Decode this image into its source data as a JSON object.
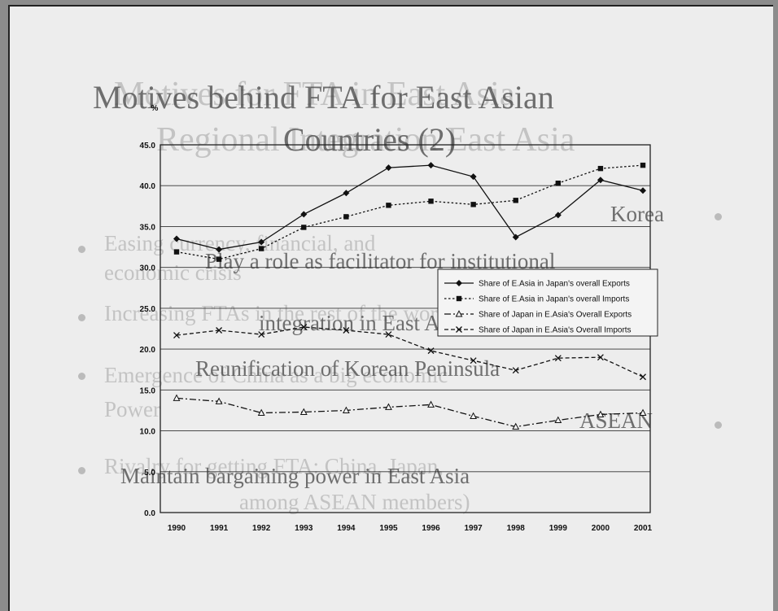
{
  "slide": {
    "overlay_lines_a": [
      "Motives behind FTA for East Asian",
      "Countries (2)",
      "Korea",
      "Play a role as facilitator for institutional",
      "integration in East Asia",
      "Reunification of Korean Peninsula",
      "ASEAN",
      "Maintain bargaining power in East Asia"
    ],
    "overlay_lines_b": [
      "Motives for FTA in East Asia",
      "Regional Integration East Asia",
      "Easing currency, financial, and",
      "economic crisis",
      "Increasing FTAs in the rest of the world",
      "Emergence of China as a big economic",
      "Power",
      "Rivalry for getting FTA: China, Japan,",
      "among ASEAN members)"
    ]
  },
  "chart_data": {
    "type": "line",
    "ylabel": "%",
    "ylim": [
      0,
      45
    ],
    "yticks": [
      "0.0",
      "5.0",
      "10.0",
      "15.0",
      "20.0",
      "25.0",
      "30.0",
      "35.0",
      "40.0",
      "45.0"
    ],
    "categories": [
      "1990",
      "1991",
      "1992",
      "1993",
      "1994",
      "1995",
      "1996",
      "1997",
      "1998",
      "1999",
      "2000",
      "2001"
    ],
    "grid": true,
    "legend_position": "right",
    "series": [
      {
        "name": "Share of E.Asia in Japan's overall Exports",
        "marker": "diamond",
        "dash": "solid",
        "values": [
          33.5,
          32.2,
          33.1,
          36.5,
          39.1,
          42.2,
          42.5,
          41.1,
          33.7,
          36.4,
          40.7,
          39.4
        ]
      },
      {
        "name": "Share of E.Asia in Japan's overall Imports",
        "marker": "square",
        "dash": "dotted",
        "values": [
          31.9,
          31.0,
          32.3,
          34.9,
          36.2,
          37.6,
          38.1,
          37.7,
          38.2,
          40.3,
          42.1,
          42.5
        ]
      },
      {
        "name": "Share of Japan in E.Asia's Overall Exports",
        "marker": "triangle",
        "dash": "dashdot",
        "values": [
          14.0,
          13.6,
          12.2,
          12.3,
          12.5,
          12.9,
          13.2,
          11.8,
          10.5,
          11.3,
          12.0,
          12.2
        ]
      },
      {
        "name": "Share of Japan in E.Asia's Overall Imports",
        "marker": "x",
        "dash": "dashed",
        "values": [
          21.7,
          22.3,
          21.8,
          22.7,
          22.3,
          21.8,
          19.8,
          18.6,
          17.4,
          18.9,
          19.0,
          16.6
        ]
      }
    ]
  }
}
